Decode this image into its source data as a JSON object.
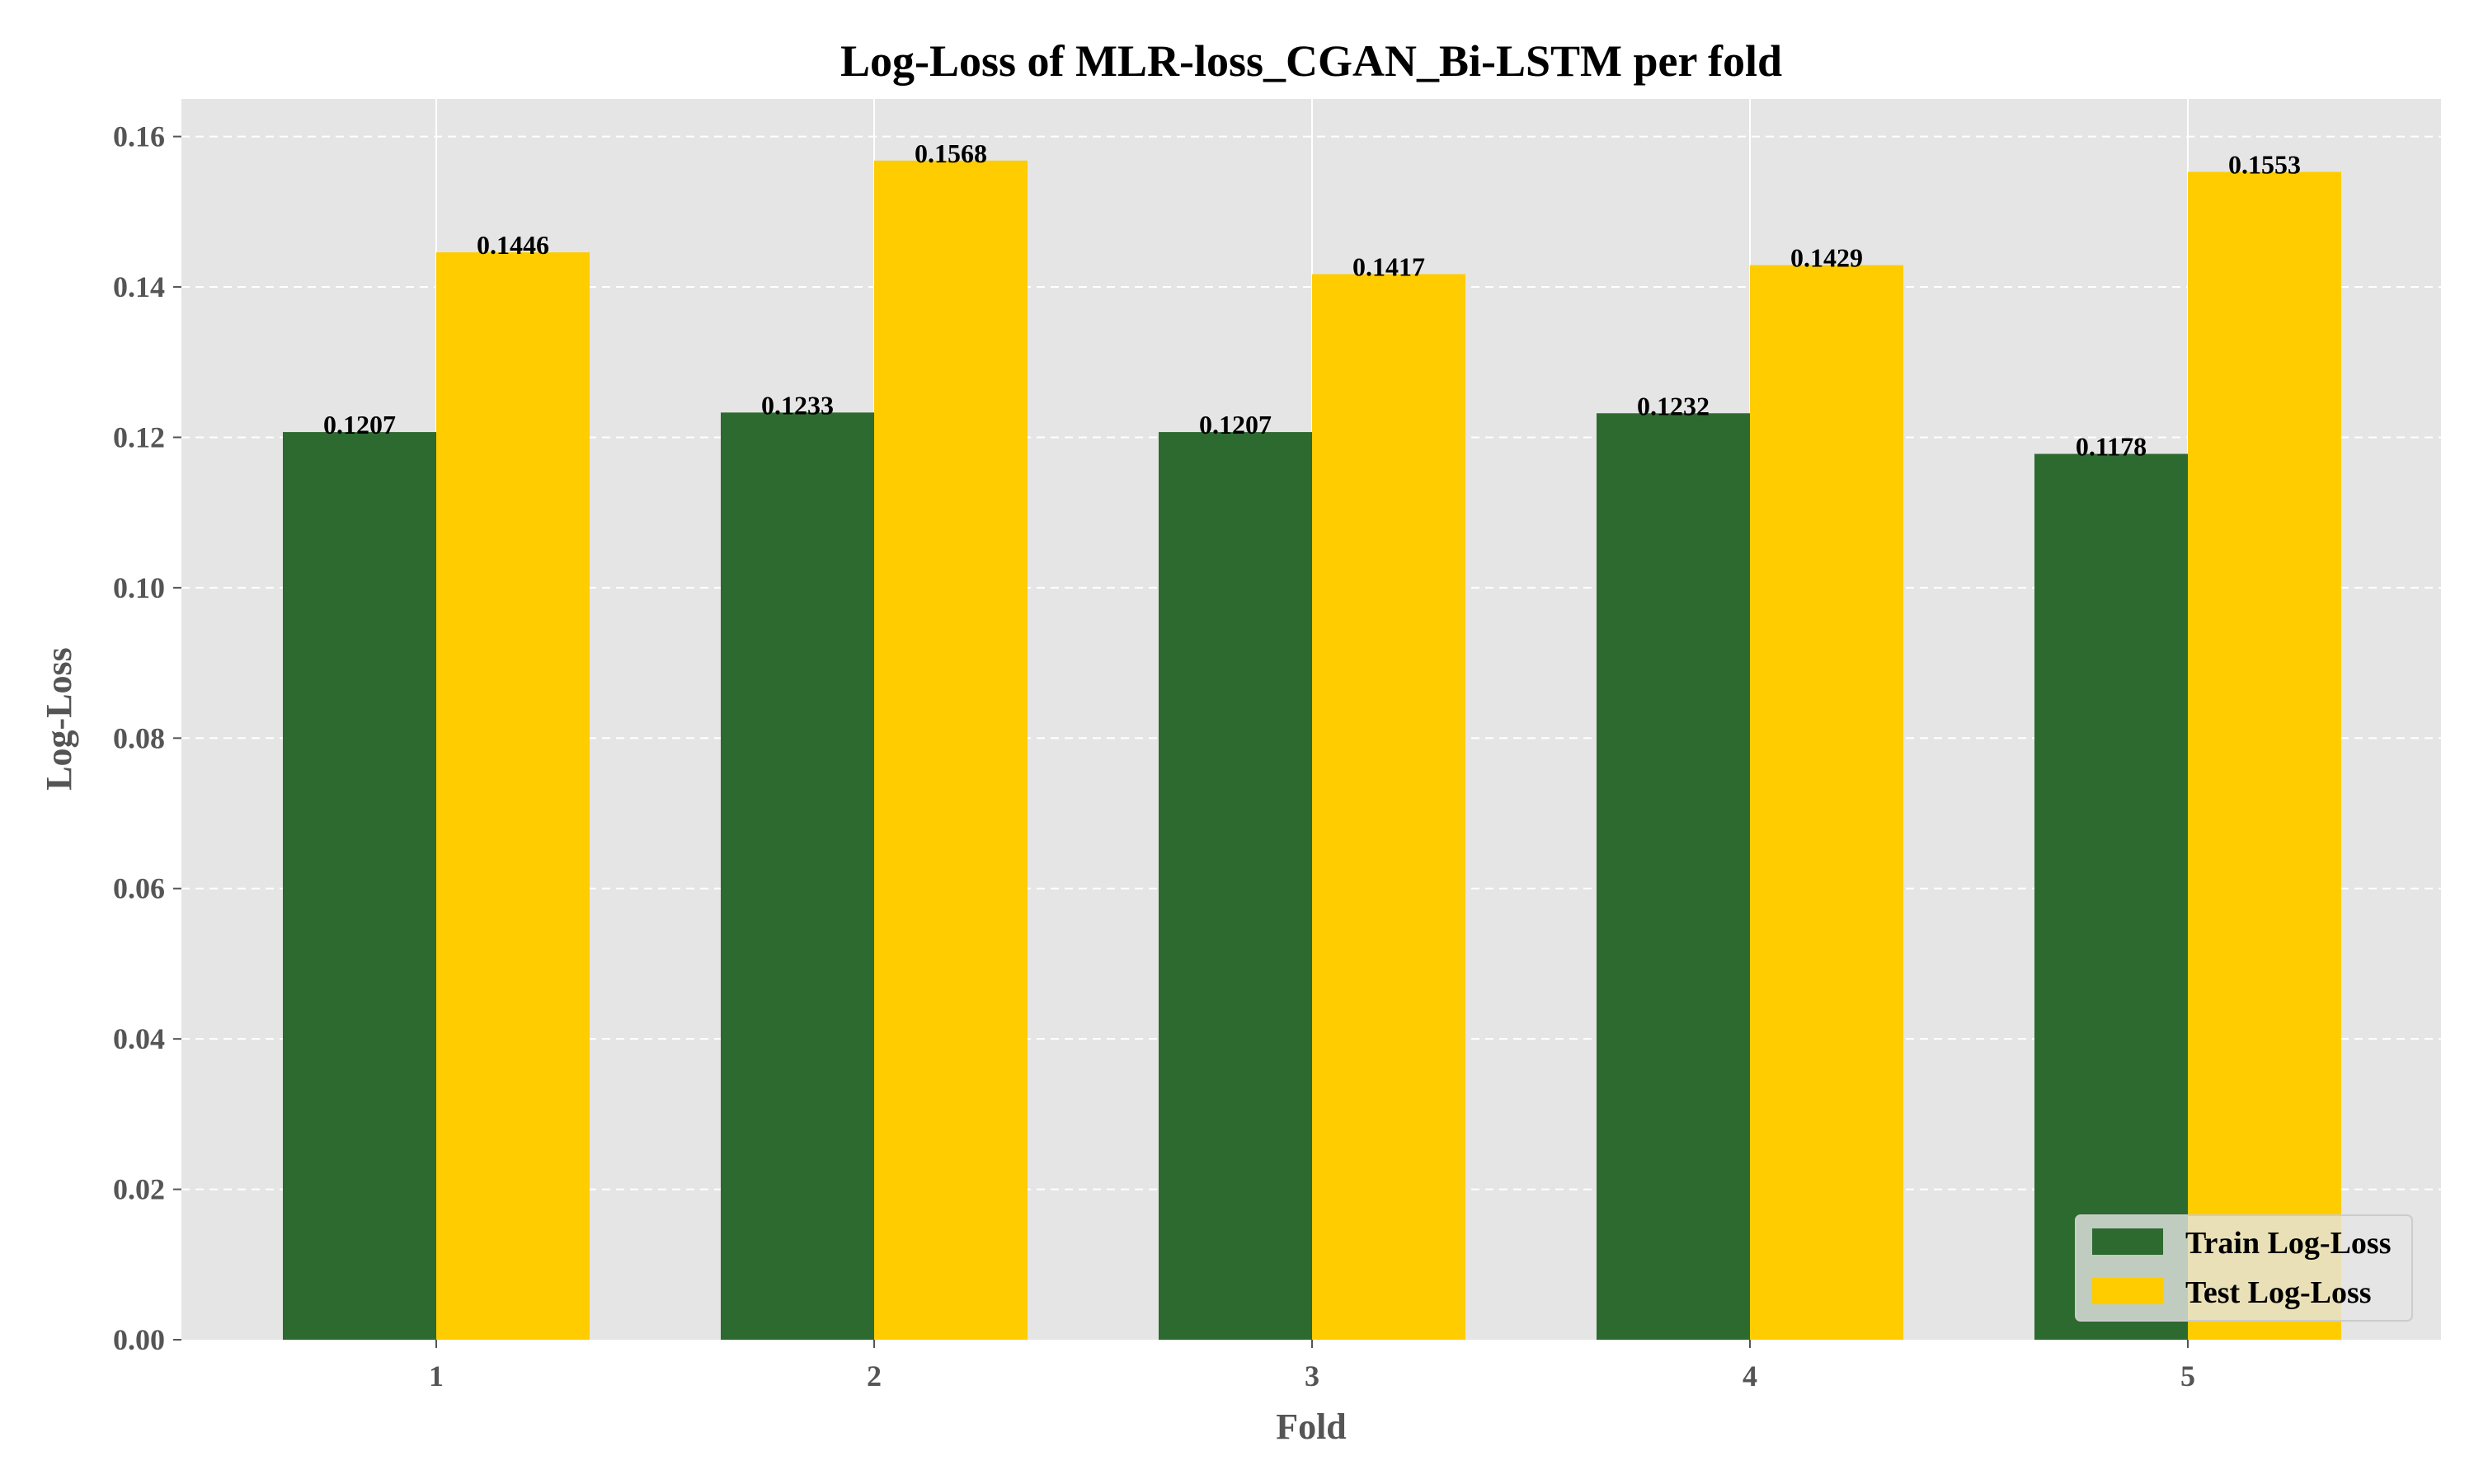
{
  "chart_data": {
    "type": "bar",
    "title": "Log-Loss of MLR-loss_CGAN_Bi-LSTM per fold",
    "xlabel": "Fold",
    "ylabel": "Log-Loss",
    "categories": [
      "1",
      "2",
      "3",
      "4",
      "5"
    ],
    "series": [
      {
        "name": "Train Log-Loss",
        "color": "#2d6a30",
        "values": [
          0.1207,
          0.1233,
          0.1207,
          0.1232,
          0.1178
        ],
        "labels": [
          "0.1207",
          "0.1233",
          "0.1207",
          "0.1232",
          "0.1178"
        ]
      },
      {
        "name": "Test Log-Loss",
        "color": "#ffcc00",
        "values": [
          0.1446,
          0.1568,
          0.1417,
          0.1429,
          0.1553
        ],
        "labels": [
          "0.1446",
          "0.1568",
          "0.1417",
          "0.1429",
          "0.1553"
        ]
      }
    ],
    "ylim": [
      0,
      0.165
    ],
    "yticks": [
      0.0,
      0.02,
      0.04,
      0.06,
      0.08,
      0.1,
      0.12,
      0.14,
      0.16
    ],
    "ytick_labels": [
      "0.00",
      "0.02",
      "0.04",
      "0.06",
      "0.08",
      "0.10",
      "0.12",
      "0.14",
      "0.16"
    ],
    "grid": true,
    "legend_position": "bottom-right",
    "background_color": "#e5e5e5"
  }
}
